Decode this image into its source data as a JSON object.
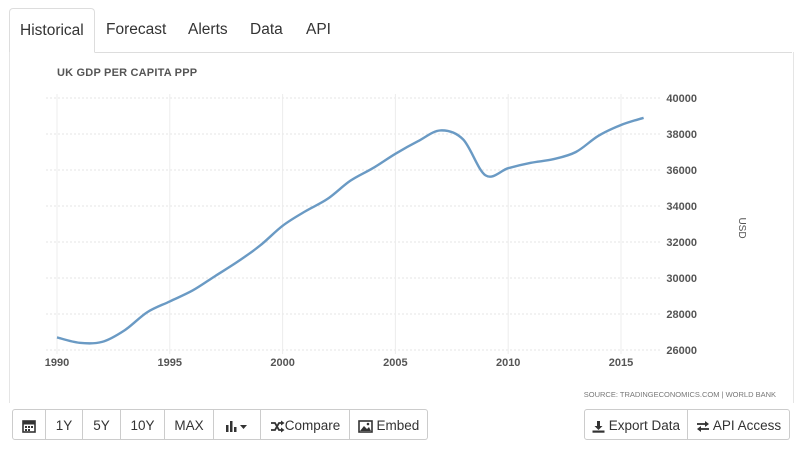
{
  "tabs": [
    {
      "label": "Historical",
      "active": true
    },
    {
      "label": "Forecast"
    },
    {
      "label": "Alerts"
    },
    {
      "label": "Data"
    },
    {
      "label": "API"
    }
  ],
  "chart_data": {
    "type": "line",
    "title": "UK GDP PER CAPITA PPP",
    "ylabel": "USD",
    "source": "SOURCE: TRADINGECONOMICS.COM | WORLD BANK",
    "xlim": [
      1990,
      2016
    ],
    "ylim": [
      26000,
      40000
    ],
    "x_ticks": [
      1990,
      1995,
      2000,
      2005,
      2010,
      2015
    ],
    "y_ticks": [
      26000,
      28000,
      30000,
      32000,
      34000,
      36000,
      38000,
      40000
    ],
    "grid": true,
    "y_axis_position": "right",
    "series": [
      {
        "color": "#6a9ac4",
        "x": [
          1990,
          1991,
          1992,
          1993,
          1994,
          1995,
          1996,
          1997,
          1998,
          1999,
          2000,
          2001,
          2002,
          2003,
          2004,
          2005,
          2006,
          2007,
          2008,
          2009,
          2010,
          2011,
          2012,
          2013,
          2014,
          2015,
          2016
        ],
        "y": [
          26700,
          26400,
          26450,
          27100,
          28100,
          28700,
          29300,
          30100,
          30900,
          31800,
          32900,
          33700,
          34400,
          35400,
          36100,
          36900,
          37600,
          38200,
          37700,
          35700,
          36100,
          36400,
          36600,
          37000,
          37900,
          38500,
          38900
        ]
      }
    ]
  },
  "toolbar": {
    "left": [
      {
        "name": "calendar-button",
        "icon": "calendar-icon"
      },
      {
        "name": "range-1y-button",
        "label": "1Y"
      },
      {
        "name": "range-5y-button",
        "label": "5Y"
      },
      {
        "name": "range-10y-button",
        "label": "10Y"
      },
      {
        "name": "range-max-button",
        "label": "MAX"
      },
      {
        "name": "chart-type-button",
        "icon": "bar-chart-icon"
      },
      {
        "name": "compare-button",
        "icon": "shuffle-icon",
        "label": "Compare"
      },
      {
        "name": "embed-button",
        "icon": "image-icon",
        "label": "Embed"
      }
    ],
    "right": [
      {
        "name": "export-data-button",
        "icon": "download-icon",
        "label": "Export Data"
      },
      {
        "name": "api-access-button",
        "icon": "exchange-icon",
        "label": "API Access"
      }
    ]
  }
}
